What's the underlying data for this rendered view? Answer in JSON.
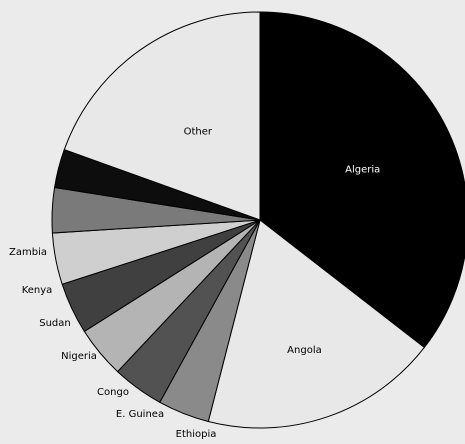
{
  "chart_data": {
    "type": "pie",
    "slices": [
      {
        "label": "Algeria",
        "value": 35.5,
        "color": "#000000",
        "label_color": "#ffffff"
      },
      {
        "label": "Angola",
        "value": 18.5,
        "color": "#e8e8e8",
        "label_color": "#000000"
      },
      {
        "label": "Ethiopia",
        "value": 4.0,
        "color": "#8a8a8a",
        "label_color": "#000000"
      },
      {
        "label": "E. Guinea",
        "value": 4.0,
        "color": "#525252",
        "label_color": "#000000"
      },
      {
        "label": "Congo",
        "value": 4.0,
        "color": "#b4b4b4",
        "label_color": "#000000"
      },
      {
        "label": "Nigeria",
        "value": 4.0,
        "color": "#404040",
        "label_color": "#000000"
      },
      {
        "label": "Sudan",
        "value": 4.0,
        "color": "#cfcfcf",
        "label_color": "#000000"
      },
      {
        "label": "Kenya",
        "value": 3.5,
        "color": "#7a7a7a",
        "label_color": "#000000"
      },
      {
        "label": "Zambia",
        "value": 3.0,
        "color": "#0d0d0d",
        "label_color": "#000000"
      },
      {
        "label": "Other",
        "value": 19.5,
        "color": "#e8e8e8",
        "label_color": "#000000"
      }
    ],
    "start_angle_deg": 0,
    "direction": "clockwise",
    "stroke_color": "#000000",
    "background": "#ebebeb"
  }
}
